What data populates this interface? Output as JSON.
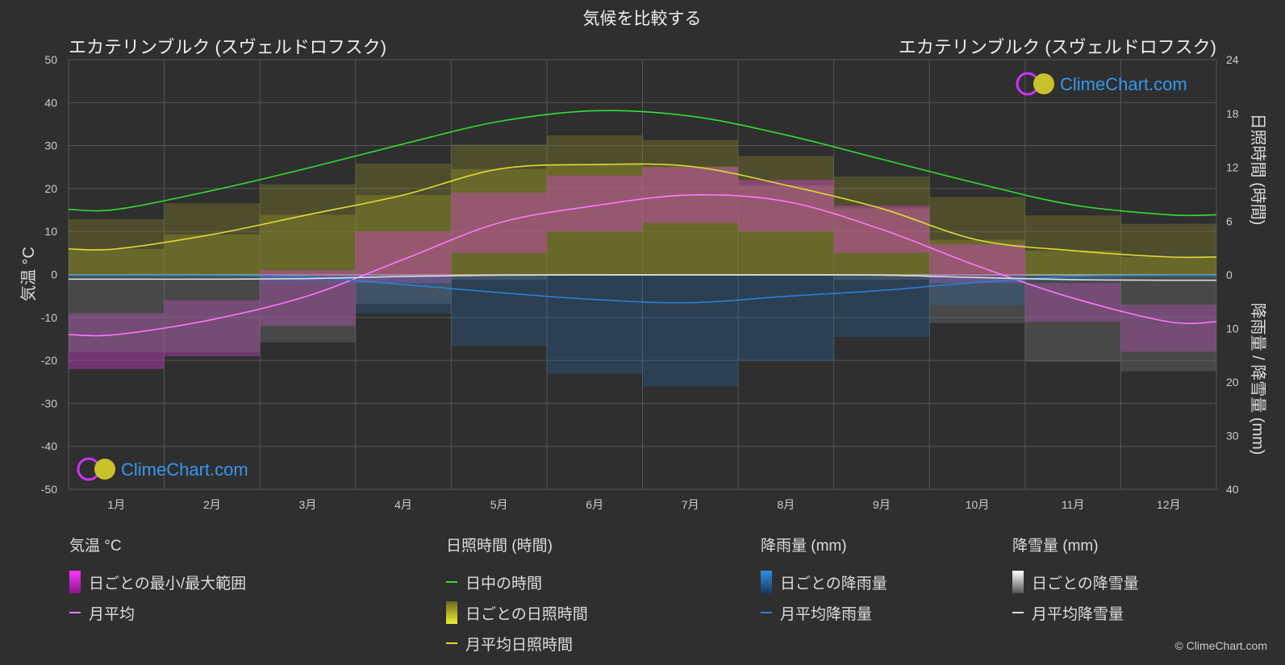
{
  "header": {
    "title": "気候を比較する",
    "location_left": "エカテリンブルク (スヴェルドロフスク)",
    "location_right": "エカテリンブルク (スヴェルドロフスク)",
    "brand": "ClimeChart.com",
    "copyright": "© ClimeChart.com"
  },
  "axes": {
    "left_label": "気温 °C",
    "right_top_label": "日照時間 (時間)",
    "right_bottom_label": "降雨量 / 降雪量 (mm)",
    "left_ticks": [
      "50",
      "40",
      "30",
      "20",
      "10",
      "0",
      "-10",
      "-20",
      "-30",
      "-40",
      "-50"
    ],
    "right_top_ticks": [
      "24",
      "18",
      "12",
      "6",
      "0"
    ],
    "right_bottom_ticks": [
      "10",
      "20",
      "30",
      "40"
    ]
  },
  "legend": {
    "temp": {
      "title": "気温 °C",
      "range": "日ごとの最小/最大範囲",
      "avg": "月平均"
    },
    "sun": {
      "title": "日照時間 (時間)",
      "daylight": "日中の時間",
      "daily": "日ごとの日照時間",
      "avg": "月平均日照時間"
    },
    "rain": {
      "title": "降雨量 (mm)",
      "daily": "日ごとの降雨量",
      "avg": "月平均降雨量"
    },
    "snow": {
      "title": "降雪量 (mm)",
      "daily": "日ごとの降雪量",
      "avg": "月平均降雪量"
    }
  },
  "colors": {
    "temp": "#e040e0",
    "temp_avg": "#ff77ff",
    "daylight": "#33dd33",
    "sunshine": "#dddd33",
    "sunshine_bar": "#8a8a2a",
    "rain": "#2a7fd4",
    "snow": "#dddddd",
    "snow_bar": "#777777"
  },
  "chart_data": {
    "type": "line",
    "categories": [
      "1月",
      "2月",
      "3月",
      "4月",
      "5月",
      "6月",
      "7月",
      "8月",
      "9月",
      "10月",
      "11月",
      "12月"
    ],
    "temp_ylim": [
      -50,
      50
    ],
    "sun_ylim": [
      0,
      24
    ],
    "precip_ylim": [
      0,
      40
    ],
    "series": [
      {
        "name": "日中の時間",
        "axis": "sun",
        "values": [
          7.3,
          9.4,
          11.9,
          14.6,
          17.1,
          18.3,
          17.7,
          15.6,
          12.9,
          10.2,
          7.8,
          6.7
        ]
      },
      {
        "name": "月平均日照時間",
        "axis": "sun",
        "values": [
          2.9,
          4.5,
          6.7,
          8.9,
          11.8,
          12.3,
          12.1,
          10.0,
          7.4,
          3.9,
          2.7,
          2.0
        ]
      },
      {
        "name": "月平均",
        "axis": "temp",
        "values": [
          -14,
          -10.5,
          -5,
          3.5,
          12,
          16,
          18.5,
          17,
          10.5,
          2,
          -5.5,
          -11
        ]
      },
      {
        "name": "月平均降雨量",
        "axis": "precip",
        "values": [
          0.1,
          0.1,
          0.4,
          1.8,
          3.3,
          4.6,
          5.2,
          4.0,
          2.9,
          1.4,
          0.3,
          0.1
        ]
      },
      {
        "name": "月平均降雪量",
        "axis": "precip",
        "values": [
          0.8,
          0.8,
          0.7,
          0.3,
          0.05,
          0,
          0,
          0,
          0.05,
          0.5,
          0.9,
          1.0
        ]
      }
    ],
    "daily_temp_range": [
      {
        "month": "1月",
        "min": -22,
        "max": -9
      },
      {
        "month": "2月",
        "min": -19,
        "max": -6
      },
      {
        "month": "3月",
        "min": -12,
        "max": 1
      },
      {
        "month": "4月",
        "min": -2,
        "max": 10
      },
      {
        "month": "5月",
        "min": 5,
        "max": 19
      },
      {
        "month": "6月",
        "min": 10,
        "max": 23
      },
      {
        "month": "7月",
        "min": 12,
        "max": 25
      },
      {
        "month": "8月",
        "min": 10,
        "max": 22
      },
      {
        "month": "9月",
        "min": 5,
        "max": 16
      },
      {
        "month": "10月",
        "min": -2,
        "max": 7
      },
      {
        "month": "11月",
        "min": -11,
        "max": -2
      },
      {
        "month": "12月",
        "min": -18,
        "max": -7
      }
    ],
    "grid": true
  }
}
